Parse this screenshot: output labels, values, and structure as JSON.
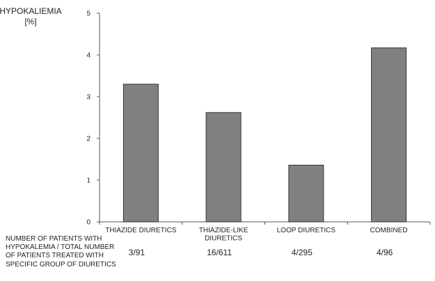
{
  "chart_data": {
    "type": "bar",
    "ylabel_lines": [
      "HYPOKALIEMIA",
      "[%]"
    ],
    "ylim": [
      0,
      5
    ],
    "yticks": [
      0,
      1,
      2,
      3,
      4,
      5
    ],
    "grid": false,
    "categories": [
      [
        "THIAZIDE DIURETICS"
      ],
      [
        "THIAZIDE-LIKE",
        "DIURETICS"
      ],
      [
        "LOOP DIURETICS"
      ],
      [
        "COMBINED"
      ]
    ],
    "values": [
      3.3,
      2.62,
      1.36,
      4.17
    ],
    "counts": [
      "3/91",
      "16/611",
      "4/295",
      "4/96"
    ],
    "counts_label": "NUMBER OF PATIENTS WITH HYPOKALEMIA / TOTAL NUMBER OF PATIENTS TREATED WITH SPECIFIC GROUP OF DIURETICS",
    "bar_color": "#808080",
    "bar_stroke": "#333333"
  }
}
